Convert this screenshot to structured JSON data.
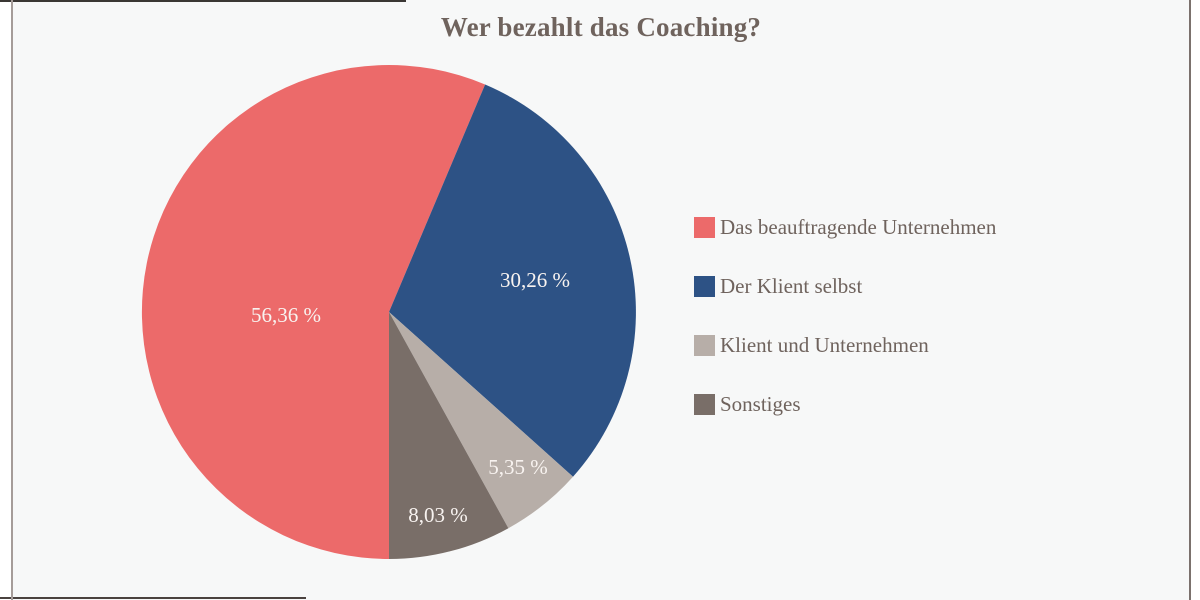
{
  "title": "Wer bezahlt das Coaching?",
  "chart_data": {
    "type": "pie",
    "title": "Wer bezahlt das Coaching?",
    "unit": "%",
    "decimal_separator": ",",
    "start_angle_deg": 180,
    "direction": "clockwise",
    "legend_position": "right",
    "slice_label_color": "#f8f3f0",
    "slices": [
      {
        "label": "Das beauftragende Unternehmen",
        "value": 56.36,
        "display": "56,36 %",
        "color": "#ec6a6a"
      },
      {
        "label": "Der Klient selbst",
        "value": 30.26,
        "display": "30,26 %",
        "color": "#2d5285"
      },
      {
        "label": "Klient und Unternehmen",
        "value": 5.35,
        "display": "5,35 %",
        "color": "#b7aea8"
      },
      {
        "label": "Sonstiges",
        "value": 8.03,
        "display": "8,03 %",
        "color": "#796e68"
      }
    ]
  },
  "colors": {
    "panel_background": "#f7f8f8",
    "title_text": "#6f635d",
    "legend_text": "#6f635d",
    "frame_top": "#3a3734",
    "frame_bottom": "#4a423f",
    "frame_left": "#a59c99",
    "frame_right": "#7b716d"
  }
}
